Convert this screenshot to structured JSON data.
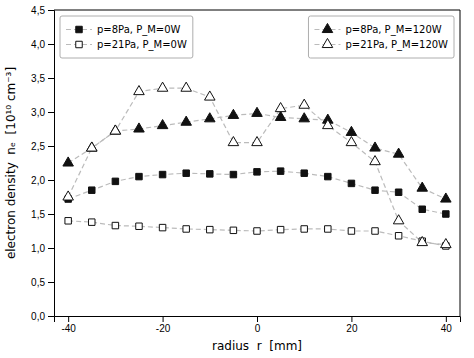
{
  "chart_data": {
    "type": "line",
    "xlabel": "radius  r  [mm]",
    "ylabel": "electron density  nₑ  [10¹⁰ cm⁻³]",
    "x": [
      -40,
      -35,
      -30,
      -25,
      -20,
      -15,
      -10,
      -5,
      0,
      5,
      10,
      15,
      20,
      25,
      30,
      35,
      40
    ],
    "series": [
      {
        "name": "p=8Pa, P_M=0W",
        "marker": "square",
        "color": "#111111",
        "values": [
          1.72,
          1.85,
          1.98,
          2.05,
          2.08,
          2.1,
          2.09,
          2.08,
          2.12,
          2.13,
          2.1,
          2.05,
          1.95,
          1.85,
          1.82,
          1.57,
          1.5
        ]
      },
      {
        "name": "p=21Pa, P_M=0W",
        "marker": "square",
        "color": "#ffffff",
        "values": [
          1.4,
          1.38,
          1.33,
          1.32,
          1.3,
          1.28,
          1.27,
          1.26,
          1.25,
          1.27,
          1.28,
          1.28,
          1.25,
          1.25,
          1.18,
          1.1,
          1.03
        ]
      },
      {
        "name": "p=8Pa, P_M=120W",
        "marker": "triangle",
        "color": "#111111",
        "values": [
          2.25,
          2.47,
          2.72,
          2.75,
          2.8,
          2.85,
          2.9,
          2.95,
          2.98,
          2.92,
          2.9,
          2.88,
          2.7,
          2.47,
          2.38,
          1.88,
          1.72
        ]
      },
      {
        "name": "p=21Pa, P_M=120W",
        "marker": "triangle",
        "color": "#ffffff",
        "values": [
          1.75,
          2.47,
          2.72,
          3.3,
          3.35,
          3.35,
          3.22,
          2.55,
          2.55,
          3.05,
          3.1,
          2.8,
          2.55,
          2.27,
          1.4,
          1.08,
          1.05
        ]
      }
    ],
    "color": "#bbbbbb",
    "line_style": "dashed",
    "xlim": [
      -43,
      43
    ],
    "ylim": [
      0.0,
      4.5
    ],
    "xticks": [
      -40,
      -20,
      0,
      20,
      40
    ],
    "yticks": [
      {
        "value": 0.0,
        "label": "0,0"
      },
      {
        "value": 0.5,
        "label": "0,5"
      },
      {
        "value": 1.0,
        "label": "1,0"
      },
      {
        "value": 1.5,
        "label": "1,5"
      },
      {
        "value": 2.0,
        "label": "2,0"
      },
      {
        "value": 2.5,
        "label": "2,5"
      },
      {
        "value": 3.0,
        "label": "3,0"
      },
      {
        "value": 3.5,
        "label": "3,5"
      },
      {
        "value": 4.0,
        "label": "4,0"
      },
      {
        "value": 4.5,
        "label": "4,5"
      }
    ],
    "grid": false,
    "legend": "top"
  }
}
